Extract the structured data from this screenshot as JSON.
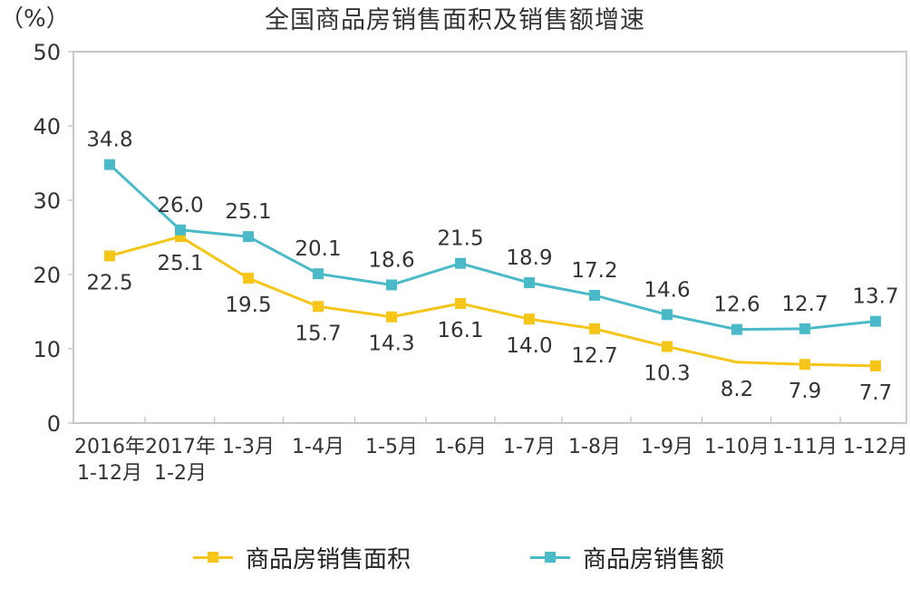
{
  "title": "全国商品房销售面积及销售额增速",
  "unit_label": "（%）",
  "legend": [
    {
      "label": "商品房销售面积",
      "color": "#f5c518"
    },
    {
      "label": "商品房销售额",
      "color": "#4bbac8"
    }
  ],
  "chart_data": {
    "type": "line",
    "title": "全国商品房销售面积及销售额增速",
    "xlabel": "",
    "ylabel": "（%）",
    "ylim": [
      0,
      50
    ],
    "yticks": [
      0,
      10,
      20,
      30,
      40,
      50
    ],
    "grid": false,
    "legend_position": "bottom",
    "categories": [
      "2016年1-12月",
      "2017年1-2月",
      "1-3月",
      "1-4月",
      "1-5月",
      "1-6月",
      "1-7月",
      "1-8月",
      "1-9月",
      "1-10月",
      "1-11月",
      "1-12月"
    ],
    "category_lines": [
      [
        "2016年",
        "1-12月"
      ],
      [
        "2017年",
        "1-2月"
      ],
      [
        "1-3月"
      ],
      [
        "1-4月"
      ],
      [
        "1-5月"
      ],
      [
        "1-6月"
      ],
      [
        "1-7月"
      ],
      [
        "1-8月"
      ],
      [
        "1-9月"
      ],
      [
        "1-10月"
      ],
      [
        "1-11月"
      ],
      [
        "1-12月"
      ]
    ],
    "series": [
      {
        "name": "商品房销售面积",
        "color": "#f5c518",
        "label_position": "below",
        "values": [
          22.5,
          25.1,
          19.5,
          15.7,
          14.3,
          16.1,
          14.0,
          12.7,
          10.3,
          8.2,
          7.9,
          7.7
        ]
      },
      {
        "name": "商品房销售额",
        "color": "#4bbac8",
        "label_position": "above",
        "values": [
          34.8,
          26.0,
          25.1,
          20.1,
          18.6,
          21.5,
          18.9,
          17.2,
          14.6,
          12.6,
          12.7,
          13.7
        ]
      }
    ]
  }
}
